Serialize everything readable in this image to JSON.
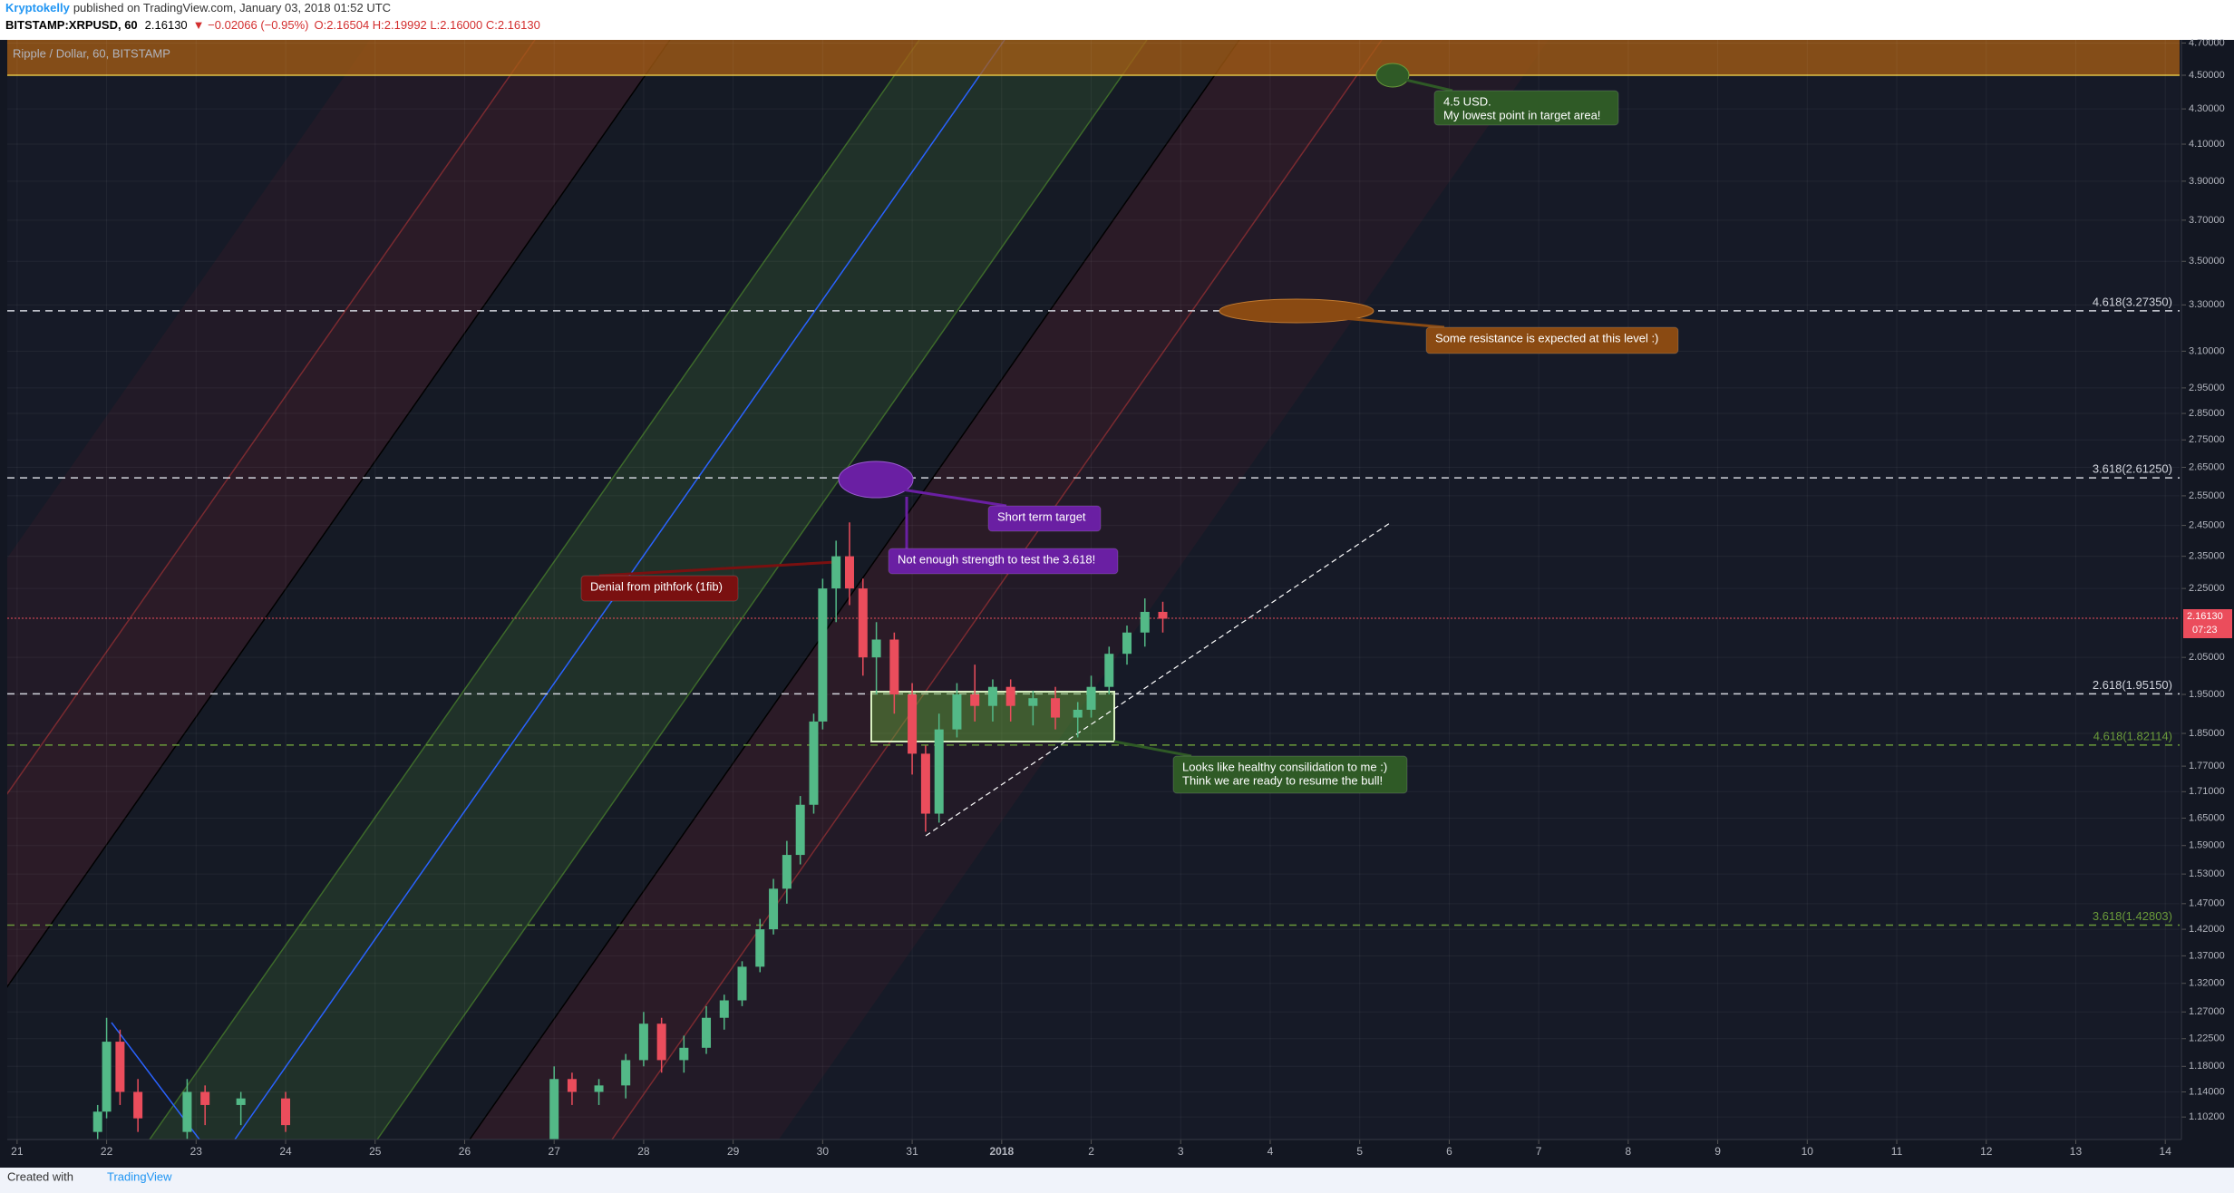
{
  "header": {
    "author": "Kryptokelly",
    "published": "published on TradingView.com, January 03, 2018 01:52 UTC",
    "symbol": "BITSTAMP:XRPUSD, 60",
    "last": "2.16130",
    "change": "▼ −0.02066 (−0.95%)",
    "ohlc": "O:2.16504 H:2.19992 L:2.16000 C:2.16130"
  },
  "footer": {
    "created": "Created with",
    "brand": "TradingView"
  },
  "chart_data": {
    "type": "candlestick",
    "legend": "Ripple / Dollar, 60, BITSTAMP",
    "log_scale": true,
    "grid": true,
    "up_color": "#53b987",
    "down_color": "#eb4d5c",
    "xlim": [
      -0.11,
      24.16
    ],
    "ylim": [
      1.069,
      4.72
    ],
    "xticks": [
      {
        "value": 0,
        "label": "21"
      },
      {
        "value": 1,
        "label": "22"
      },
      {
        "value": 2,
        "label": "23"
      },
      {
        "value": 3,
        "label": "24"
      },
      {
        "value": 4,
        "label": "25"
      },
      {
        "value": 5,
        "label": "26"
      },
      {
        "value": 6,
        "label": "27"
      },
      {
        "value": 7,
        "label": "28"
      },
      {
        "value": 8,
        "label": "29"
      },
      {
        "value": 9,
        "label": "30"
      },
      {
        "value": 10,
        "label": "31"
      },
      {
        "value": 11,
        "label": "2018"
      },
      {
        "value": 12,
        "label": "2"
      },
      {
        "value": 13,
        "label": "3"
      },
      {
        "value": 14,
        "label": "4"
      },
      {
        "value": 15,
        "label": "5"
      },
      {
        "value": 16,
        "label": "6"
      },
      {
        "value": 17,
        "label": "7"
      },
      {
        "value": 18,
        "label": "8"
      },
      {
        "value": 19,
        "label": "9"
      },
      {
        "value": 20,
        "label": "10"
      },
      {
        "value": 21,
        "label": "11"
      },
      {
        "value": 22,
        "label": "12"
      },
      {
        "value": 23,
        "label": "13"
      },
      {
        "value": 24,
        "label": "14"
      }
    ],
    "yticks": [
      {
        "value": 4.7,
        "label": "4.70000"
      },
      {
        "value": 4.5,
        "label": "4.50000"
      },
      {
        "value": 4.3,
        "label": "4.30000"
      },
      {
        "value": 4.1,
        "label": "4.10000"
      },
      {
        "value": 3.9,
        "label": "3.90000"
      },
      {
        "value": 3.7,
        "label": "3.70000"
      },
      {
        "value": 3.5,
        "label": "3.50000"
      },
      {
        "value": 3.3,
        "label": "3.30000"
      },
      {
        "value": 3.1,
        "label": "3.10000"
      },
      {
        "value": 2.95,
        "label": "2.95000"
      },
      {
        "value": 2.85,
        "label": "2.85000"
      },
      {
        "value": 2.75,
        "label": "2.75000"
      },
      {
        "value": 2.65,
        "label": "2.65000"
      },
      {
        "value": 2.55,
        "label": "2.55000"
      },
      {
        "value": 2.45,
        "label": "2.45000"
      },
      {
        "value": 2.35,
        "label": "2.35000"
      },
      {
        "value": 2.25,
        "label": "2.25000"
      },
      {
        "value": 2.05,
        "label": "2.05000"
      },
      {
        "value": 1.95,
        "label": "1.95000"
      },
      {
        "value": 1.85,
        "label": "1.85000"
      },
      {
        "value": 1.77,
        "label": "1.77000"
      },
      {
        "value": 1.71,
        "label": "1.71000"
      },
      {
        "value": 1.65,
        "label": "1.65000"
      },
      {
        "value": 1.59,
        "label": "1.59000"
      },
      {
        "value": 1.53,
        "label": "1.53000"
      },
      {
        "value": 1.47,
        "label": "1.47000"
      },
      {
        "value": 1.42,
        "label": "1.42000"
      },
      {
        "value": 1.37,
        "label": "1.37000"
      },
      {
        "value": 1.32,
        "label": "1.32000"
      },
      {
        "value": 1.27,
        "label": "1.27000"
      },
      {
        "value": 1.225,
        "label": "1.22500"
      },
      {
        "value": 1.18,
        "label": "1.18000"
      },
      {
        "value": 1.14,
        "label": "1.14000"
      },
      {
        "value": 1.102,
        "label": "1.10200"
      }
    ],
    "candles": [
      [
        0.9,
        1.08,
        1.12,
        1.06,
        1.11
      ],
      [
        1.0,
        1.11,
        1.26,
        1.1,
        1.22
      ],
      [
        1.15,
        1.22,
        1.24,
        1.12,
        1.14
      ],
      [
        1.35,
        1.14,
        1.16,
        1.08,
        1.1
      ],
      [
        1.9,
        1.08,
        1.16,
        1.07,
        1.14
      ],
      [
        2.1,
        1.14,
        1.15,
        1.09,
        1.12
      ],
      [
        2.5,
        1.12,
        1.14,
        1.09,
        1.13
      ],
      [
        3.0,
        1.13,
        1.14,
        1.08,
        1.09
      ],
      [
        6.0,
        1.06,
        1.18,
        1.05,
        1.16
      ],
      [
        6.2,
        1.16,
        1.17,
        1.12,
        1.14
      ],
      [
        6.5,
        1.14,
        1.16,
        1.12,
        1.15
      ],
      [
        6.8,
        1.15,
        1.2,
        1.13,
        1.19
      ],
      [
        7.0,
        1.19,
        1.27,
        1.18,
        1.25
      ],
      [
        7.2,
        1.25,
        1.26,
        1.17,
        1.19
      ],
      [
        7.45,
        1.19,
        1.23,
        1.17,
        1.21
      ],
      [
        7.7,
        1.21,
        1.28,
        1.2,
        1.26
      ],
      [
        7.9,
        1.26,
        1.3,
        1.24,
        1.29
      ],
      [
        8.1,
        1.29,
        1.36,
        1.28,
        1.35
      ],
      [
        8.3,
        1.35,
        1.44,
        1.34,
        1.42
      ],
      [
        8.45,
        1.42,
        1.52,
        1.41,
        1.5
      ],
      [
        8.6,
        1.5,
        1.6,
        1.47,
        1.57
      ],
      [
        8.75,
        1.57,
        1.7,
        1.55,
        1.68
      ],
      [
        8.9,
        1.68,
        1.9,
        1.66,
        1.88
      ],
      [
        9.0,
        1.88,
        2.28,
        1.86,
        2.25
      ],
      [
        9.15,
        2.25,
        2.4,
        2.15,
        2.35
      ],
      [
        9.3,
        2.35,
        2.46,
        2.2,
        2.25
      ],
      [
        9.45,
        2.25,
        2.28,
        2.0,
        2.05
      ],
      [
        9.6,
        2.05,
        2.15,
        1.95,
        2.1
      ],
      [
        9.8,
        2.1,
        2.12,
        1.9,
        1.95
      ],
      [
        10.0,
        1.95,
        1.98,
        1.75,
        1.8
      ],
      [
        10.15,
        1.8,
        1.82,
        1.62,
        1.66
      ],
      [
        10.3,
        1.66,
        1.9,
        1.64,
        1.86
      ],
      [
        10.5,
        1.86,
        1.98,
        1.84,
        1.95
      ],
      [
        10.7,
        1.95,
        2.03,
        1.88,
        1.92
      ],
      [
        10.9,
        1.92,
        1.99,
        1.88,
        1.97
      ],
      [
        11.1,
        1.97,
        1.99,
        1.88,
        1.92
      ],
      [
        11.35,
        1.92,
        1.96,
        1.87,
        1.94
      ],
      [
        11.6,
        1.94,
        1.97,
        1.86,
        1.89
      ],
      [
        11.85,
        1.89,
        1.93,
        1.84,
        1.91
      ],
      [
        12.0,
        1.91,
        2.0,
        1.89,
        1.97
      ],
      [
        12.2,
        1.97,
        2.08,
        1.95,
        2.06
      ],
      [
        12.4,
        2.06,
        2.14,
        2.03,
        2.12
      ],
      [
        12.6,
        2.12,
        2.22,
        2.08,
        2.18
      ],
      [
        12.8,
        2.18,
        2.21,
        2.12,
        2.16
      ]
    ],
    "levels": [
      {
        "value": 3.2735,
        "label": "4.618(3.27350)",
        "color": "#d1d4dc"
      },
      {
        "value": 2.6125,
        "label": "3.618(2.61250)",
        "color": "#d1d4dc"
      },
      {
        "value": 1.9515,
        "label": "2.618(1.95150)",
        "color": "#d1d4dc"
      },
      {
        "value": 1.82114,
        "label": "4.618(1.82114)",
        "color": "#6a9a3a"
      },
      {
        "value": 1.42803,
        "label": "3.618(1.42803)",
        "color": "#6a9a3a"
      }
    ],
    "price_tag": {
      "value": 2.1613,
      "label": "2.16130",
      "countdown": "07:23",
      "color": "#eb4d5c"
    },
    "annotations": [
      {
        "lines": [
          "4.5 USD.",
          "My lowest point in target area!"
        ],
        "color": "#2f5a26"
      },
      {
        "lines": [
          "Some resistance is expected at this level :)"
        ],
        "color": "#8a4a12"
      },
      {
        "lines": [
          "Short term target"
        ],
        "color": "#6a1fa3"
      },
      {
        "lines": [
          "Not enough strength to test the 3.618!"
        ],
        "color": "#6a1fa3"
      },
      {
        "lines": [
          "Denial from pithfork (1fib)"
        ],
        "color": "#7a1010"
      },
      {
        "lines": [
          "Looks like healthy consilidation to me :)",
          "Think we are ready to resume the bull!"
        ],
        "color": "#2f5a26"
      }
    ]
  }
}
